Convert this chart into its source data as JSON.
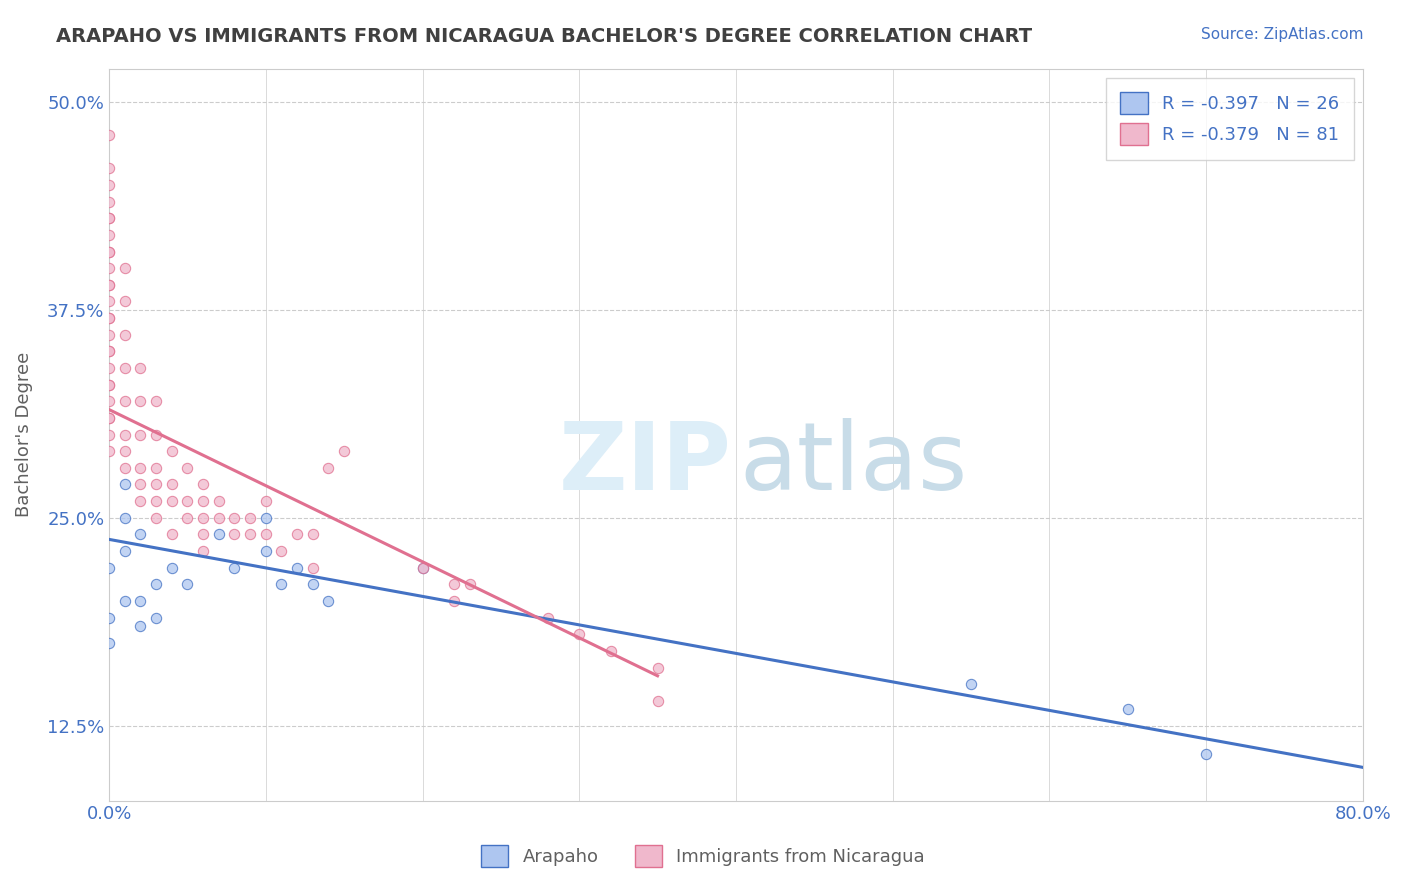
{
  "title": "ARAPAHO VS IMMIGRANTS FROM NICARAGUA BACHELOR'S DEGREE CORRELATION CHART",
  "source_text": "Source: ZipAtlas.com",
  "ylabel": "Bachelor's Degree",
  "xlim": [
    0.0,
    0.8
  ],
  "ylim": [
    0.08,
    0.52
  ],
  "xticks": [
    0.0,
    0.1,
    0.2,
    0.3,
    0.4,
    0.5,
    0.6,
    0.7,
    0.8
  ],
  "xticklabels": [
    "0.0%",
    "",
    "",
    "",
    "",
    "",
    "",
    "",
    "80.0%"
  ],
  "yticks": [
    0.125,
    0.25,
    0.375,
    0.5
  ],
  "yticklabels": [
    "12.5%",
    "25.0%",
    "37.5%",
    "50.0%"
  ],
  "blue_scatter_x": [
    0.0,
    0.0,
    0.01,
    0.01,
    0.01,
    0.02,
    0.02,
    0.03,
    0.04,
    0.05,
    0.07,
    0.08,
    0.1,
    0.1,
    0.11,
    0.12,
    0.13,
    0.14,
    0.2,
    0.55,
    0.65,
    0.7,
    0.0,
    0.01,
    0.02,
    0.03
  ],
  "blue_scatter_y": [
    0.19,
    0.22,
    0.23,
    0.25,
    0.27,
    0.2,
    0.24,
    0.21,
    0.22,
    0.21,
    0.24,
    0.22,
    0.23,
    0.25,
    0.21,
    0.22,
    0.21,
    0.2,
    0.22,
    0.15,
    0.135,
    0.108,
    0.175,
    0.2,
    0.185,
    0.19
  ],
  "pink_scatter_x": [
    0.0,
    0.0,
    0.0,
    0.0,
    0.0,
    0.0,
    0.0,
    0.01,
    0.01,
    0.01,
    0.01,
    0.01,
    0.01,
    0.01,
    0.02,
    0.02,
    0.02,
    0.02,
    0.02,
    0.03,
    0.03,
    0.03,
    0.03,
    0.03,
    0.04,
    0.04,
    0.04,
    0.05,
    0.05,
    0.05,
    0.06,
    0.06,
    0.06,
    0.06,
    0.07,
    0.07,
    0.08,
    0.08,
    0.09,
    0.09,
    0.1,
    0.1,
    0.11,
    0.12,
    0.13,
    0.14,
    0.15,
    0.2,
    0.22,
    0.23,
    0.28,
    0.3,
    0.32,
    0.35,
    0.35,
    0.22,
    0.13,
    0.06,
    0.04,
    0.03,
    0.02,
    0.01,
    0.0,
    0.0,
    0.0,
    0.0,
    0.0,
    0.0,
    0.0,
    0.0,
    0.0,
    0.0,
    0.0,
    0.0,
    0.0,
    0.0,
    0.0,
    0.0,
    0.0,
    0.0,
    0.0
  ],
  "pink_scatter_y": [
    0.3,
    0.32,
    0.34,
    0.36,
    0.38,
    0.4,
    0.42,
    0.28,
    0.3,
    0.32,
    0.34,
    0.36,
    0.38,
    0.4,
    0.26,
    0.28,
    0.3,
    0.32,
    0.34,
    0.26,
    0.27,
    0.28,
    0.3,
    0.32,
    0.26,
    0.27,
    0.29,
    0.25,
    0.26,
    0.28,
    0.24,
    0.25,
    0.26,
    0.27,
    0.25,
    0.26,
    0.24,
    0.25,
    0.24,
    0.25,
    0.24,
    0.26,
    0.23,
    0.24,
    0.24,
    0.28,
    0.29,
    0.22,
    0.21,
    0.21,
    0.19,
    0.18,
    0.17,
    0.14,
    0.16,
    0.2,
    0.22,
    0.23,
    0.24,
    0.25,
    0.27,
    0.29,
    0.44,
    0.46,
    0.48,
    0.43,
    0.41,
    0.39,
    0.37,
    0.35,
    0.33,
    0.31,
    0.45,
    0.43,
    0.41,
    0.39,
    0.37,
    0.35,
    0.33,
    0.31,
    0.29
  ],
  "blue_line_x": [
    0.0,
    0.8
  ],
  "blue_line_y": [
    0.237,
    0.1
  ],
  "pink_line_x": [
    0.0,
    0.35
  ],
  "pink_line_y": [
    0.315,
    0.155
  ],
  "scatter_size": 55,
  "scatter_alpha": 0.75,
  "blue_color": "#4472C4",
  "pink_color": "#E07090",
  "blue_fill": "#aec6f0",
  "pink_fill": "#f0b8cc",
  "title_color": "#404040",
  "axis_color": "#606060",
  "grid_color": "#cccccc",
  "background_color": "#ffffff",
  "watermark_zip_color": "#ddeef8",
  "watermark_atlas_color": "#c8dce8",
  "legend_r1": "R = -0.397   N = 26",
  "legend_r2": "R = -0.379   N = 81",
  "bottom_label1": "Arapaho",
  "bottom_label2": "Immigrants from Nicaragua"
}
